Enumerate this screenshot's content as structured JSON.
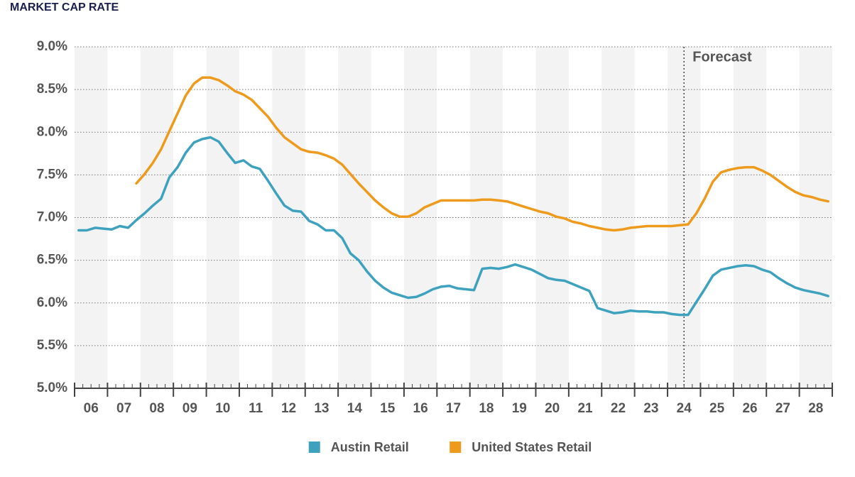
{
  "chart_data": {
    "type": "line",
    "title": "MARKET CAP RATE",
    "x": [
      2006.125,
      2006.375,
      2006.625,
      2006.875,
      2007.125,
      2007.375,
      2007.625,
      2007.875,
      2008.125,
      2008.375,
      2008.625,
      2008.875,
      2009.125,
      2009.375,
      2009.625,
      2009.875,
      2010.125,
      2010.375,
      2010.625,
      2010.875,
      2011.125,
      2011.375,
      2011.625,
      2011.875,
      2012.125,
      2012.375,
      2012.625,
      2012.875,
      2013.125,
      2013.375,
      2013.625,
      2013.875,
      2014.125,
      2014.375,
      2014.625,
      2014.875,
      2015.125,
      2015.375,
      2015.625,
      2015.875,
      2016.125,
      2016.375,
      2016.625,
      2016.875,
      2017.125,
      2017.375,
      2017.625,
      2017.875,
      2018.125,
      2018.375,
      2018.625,
      2018.875,
      2019.125,
      2019.375,
      2019.625,
      2019.875,
      2020.125,
      2020.375,
      2020.625,
      2020.875,
      2021.125,
      2021.375,
      2021.625,
      2021.875,
      2022.125,
      2022.375,
      2022.625,
      2022.875,
      2023.125,
      2023.375,
      2023.625,
      2023.875,
      2024.125,
      2024.375,
      2024.625,
      2024.875,
      2025.125,
      2025.375,
      2025.625,
      2025.875,
      2026.125,
      2026.375,
      2026.625,
      2026.875,
      2027.125,
      2027.375,
      2027.625,
      2027.875,
      2028.125,
      2028.375,
      2028.625,
      2028.875
    ],
    "series": [
      {
        "name": "Austin Retail",
        "color": "#3ea2bf",
        "values": [
          6.85,
          6.85,
          6.88,
          6.87,
          6.86,
          6.9,
          6.88,
          6.97,
          7.05,
          7.14,
          7.22,
          7.47,
          7.59,
          7.76,
          7.88,
          7.92,
          7.94,
          7.89,
          7.76,
          7.64,
          7.67,
          7.6,
          7.57,
          7.43,
          7.28,
          7.14,
          7.08,
          7.07,
          6.96,
          6.92,
          6.85,
          6.85,
          6.76,
          6.58,
          6.5,
          6.37,
          6.26,
          6.18,
          6.12,
          6.09,
          6.06,
          6.07,
          6.11,
          6.16,
          6.19,
          6.2,
          6.17,
          6.16,
          6.15,
          6.4,
          6.41,
          6.4,
          6.42,
          6.45,
          6.42,
          6.39,
          6.34,
          6.29,
          6.27,
          6.26,
          6.22,
          6.18,
          6.14,
          5.94,
          5.91,
          5.88,
          5.89,
          5.91,
          5.9,
          5.9,
          5.89,
          5.89,
          5.87,
          5.86,
          5.86,
          6.01,
          6.16,
          6.32,
          6.39,
          6.41,
          6.43,
          6.44,
          6.43,
          6.39,
          6.36,
          6.29,
          6.23,
          6.18,
          6.15,
          6.13,
          6.11,
          6.08
        ]
      },
      {
        "name": "United States Retail",
        "color": "#ee9a1c",
        "values": [
          null,
          null,
          null,
          null,
          null,
          null,
          null,
          7.4,
          7.51,
          7.64,
          7.8,
          8.01,
          8.22,
          8.43,
          8.57,
          8.64,
          8.64,
          8.61,
          8.55,
          8.48,
          8.44,
          8.38,
          8.28,
          8.18,
          8.05,
          7.94,
          7.87,
          7.8,
          7.77,
          7.76,
          7.73,
          7.69,
          7.62,
          7.51,
          7.4,
          7.3,
          7.2,
          7.12,
          7.05,
          7.01,
          7.01,
          7.05,
          7.12,
          7.16,
          7.2,
          7.2,
          7.2,
          7.2,
          7.2,
          7.21,
          7.21,
          7.2,
          7.19,
          7.16,
          7.13,
          7.1,
          7.07,
          7.05,
          7.01,
          6.99,
          6.95,
          6.93,
          6.9,
          6.88,
          6.86,
          6.85,
          6.86,
          6.88,
          6.89,
          6.9,
          6.9,
          6.9,
          6.9,
          6.91,
          6.92,
          7.05,
          7.22,
          7.42,
          7.53,
          7.56,
          7.58,
          7.59,
          7.59,
          7.55,
          7.5,
          7.43,
          7.36,
          7.3,
          7.26,
          7.24,
          7.21,
          7.19
        ]
      }
    ],
    "xlim": [
      2006,
      2029
    ],
    "xticks": [
      {
        "value": 2006.5,
        "label": "06"
      },
      {
        "value": 2007.5,
        "label": "07"
      },
      {
        "value": 2008.5,
        "label": "08"
      },
      {
        "value": 2009.5,
        "label": "09"
      },
      {
        "value": 2010.5,
        "label": "10"
      },
      {
        "value": 2011.5,
        "label": "11"
      },
      {
        "value": 2012.5,
        "label": "12"
      },
      {
        "value": 2013.5,
        "label": "13"
      },
      {
        "value": 2014.5,
        "label": "14"
      },
      {
        "value": 2015.5,
        "label": "15"
      },
      {
        "value": 2016.5,
        "label": "16"
      },
      {
        "value": 2017.5,
        "label": "17"
      },
      {
        "value": 2018.5,
        "label": "18"
      },
      {
        "value": 2019.5,
        "label": "19"
      },
      {
        "value": 2020.5,
        "label": "20"
      },
      {
        "value": 2021.5,
        "label": "21"
      },
      {
        "value": 2022.5,
        "label": "22"
      },
      {
        "value": 2023.5,
        "label": "23"
      },
      {
        "value": 2024.5,
        "label": "24"
      },
      {
        "value": 2025.5,
        "label": "25"
      },
      {
        "value": 2026.5,
        "label": "26"
      },
      {
        "value": 2027.5,
        "label": "27"
      },
      {
        "value": 2028.5,
        "label": "28"
      }
    ],
    "ylim": [
      5,
      9
    ],
    "yticks": [
      {
        "value": 5,
        "label": "5.0%"
      },
      {
        "value": 5.5,
        "label": "5.5%"
      },
      {
        "value": 6,
        "label": "6.0%"
      },
      {
        "value": 6.5,
        "label": "6.5%"
      },
      {
        "value": 7,
        "label": "7.0%"
      },
      {
        "value": 7.5,
        "label": "7.5%"
      },
      {
        "value": 8,
        "label": "8.0%"
      },
      {
        "value": 8.5,
        "label": "8.5%"
      },
      {
        "value": 9,
        "label": "9.0%"
      }
    ],
    "grid": true,
    "forecast": {
      "label": "Forecast",
      "x": 2024.5
    },
    "legend": "bottom"
  }
}
